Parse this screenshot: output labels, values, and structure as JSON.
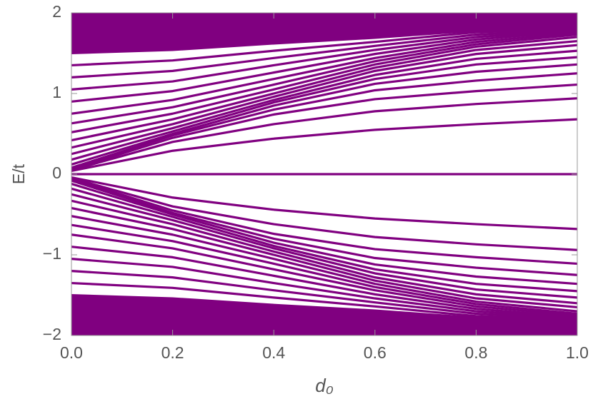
{
  "chart_data": {
    "type": "line",
    "xlabel": "d₀",
    "ylabel": "E/t",
    "xlim": [
      0,
      1
    ],
    "ylim": [
      -2,
      2
    ],
    "xticks": [
      {
        "value": 0,
        "label": "0.0"
      },
      {
        "value": 0.2,
        "label": "0.2"
      },
      {
        "value": 0.4,
        "label": "0.4"
      },
      {
        "value": 0.6,
        "label": "0.6"
      },
      {
        "value": 0.8,
        "label": "0.8"
      },
      {
        "value": 1,
        "label": "1.0"
      }
    ],
    "yticks": [
      {
        "value": -2,
        "label": "−2"
      },
      {
        "value": -1,
        "label": "−1"
      },
      0,
      1,
      2
    ],
    "color": "#800080",
    "x": [
      0,
      0.2,
      0.4,
      0.6,
      0.8,
      1
    ],
    "series": [
      {
        "values": [
          0,
          0,
          0,
          0,
          0,
          0
        ]
      },
      {
        "values": [
          0.04,
          0.29,
          0.44,
          0.55,
          0.62,
          0.68
        ]
      },
      {
        "values": [
          0.05,
          0.4,
          0.62,
          0.78,
          0.87,
          0.94
        ]
      },
      {
        "values": [
          0.06,
          0.45,
          0.74,
          0.93,
          1.03,
          1.11
        ]
      },
      {
        "values": [
          0.08,
          0.48,
          0.8,
          1.04,
          1.16,
          1.25
        ]
      },
      {
        "values": [
          0.12,
          0.5,
          0.85,
          1.12,
          1.27,
          1.36
        ]
      },
      {
        "values": [
          0.18,
          0.53,
          0.89,
          1.18,
          1.36,
          1.45
        ]
      },
      {
        "values": [
          0.25,
          0.57,
          0.92,
          1.23,
          1.43,
          1.53
        ]
      },
      {
        "values": [
          0.33,
          0.62,
          0.96,
          1.28,
          1.49,
          1.6
        ]
      },
      {
        "values": [
          0.42,
          0.68,
          1.0,
          1.32,
          1.54,
          1.65
        ]
      },
      {
        "values": [
          0.52,
          0.75,
          1.05,
          1.36,
          1.58,
          1.7
        ]
      },
      {
        "values": [
          0.63,
          0.83,
          1.11,
          1.4,
          1.61,
          1.73
        ]
      },
      {
        "values": [
          0.75,
          0.92,
          1.18,
          1.44,
          1.64,
          1.75
        ]
      },
      {
        "values": [
          0.9,
          1.03,
          1.26,
          1.49,
          1.67,
          1.77
        ]
      },
      {
        "values": [
          1.05,
          1.15,
          1.35,
          1.54,
          1.7,
          1.78
        ]
      },
      {
        "values": [
          1.2,
          1.28,
          1.44,
          1.59,
          1.73,
          1.79
        ]
      },
      {
        "values": [
          1.35,
          1.41,
          1.53,
          1.64,
          1.76,
          1.8
        ]
      },
      {
        "values": [
          -0.04,
          -0.29,
          -0.44,
          -0.55,
          -0.62,
          -0.68
        ]
      },
      {
        "values": [
          -0.05,
          -0.4,
          -0.62,
          -0.78,
          -0.87,
          -0.94
        ]
      },
      {
        "values": [
          -0.06,
          -0.45,
          -0.74,
          -0.93,
          -1.03,
          -1.11
        ]
      },
      {
        "values": [
          -0.08,
          -0.48,
          -0.8,
          -1.04,
          -1.16,
          -1.25
        ]
      },
      {
        "values": [
          -0.12,
          -0.5,
          -0.85,
          -1.12,
          -1.27,
          -1.36
        ]
      },
      {
        "values": [
          -0.18,
          -0.53,
          -0.89,
          -1.18,
          -1.36,
          -1.45
        ]
      },
      {
        "values": [
          -0.25,
          -0.57,
          -0.92,
          -1.23,
          -1.43,
          -1.53
        ]
      },
      {
        "values": [
          -0.33,
          -0.62,
          -0.96,
          -1.28,
          -1.49,
          -1.6
        ]
      },
      {
        "values": [
          -0.42,
          -0.68,
          -1.0,
          -1.32,
          -1.54,
          -1.65
        ]
      },
      {
        "values": [
          -0.52,
          -0.75,
          -1.05,
          -1.36,
          -1.58,
          -1.7
        ]
      },
      {
        "values": [
          -0.63,
          -0.83,
          -1.11,
          -1.4,
          -1.61,
          -1.73
        ]
      },
      {
        "values": [
          -0.75,
          -0.92,
          -1.18,
          -1.44,
          -1.64,
          -1.75
        ]
      },
      {
        "values": [
          -0.9,
          -1.03,
          -1.26,
          -1.49,
          -1.67,
          -1.77
        ]
      },
      {
        "values": [
          -1.05,
          -1.15,
          -1.35,
          -1.54,
          -1.7,
          -1.78
        ]
      },
      {
        "values": [
          -1.2,
          -1.28,
          -1.44,
          -1.59,
          -1.73,
          -1.79
        ]
      },
      {
        "values": [
          -1.35,
          -1.41,
          -1.53,
          -1.64,
          -1.76,
          -1.8
        ]
      }
    ],
    "areas": [
      {
        "lower": [
          1.5,
          1.54,
          1.62,
          1.69,
          1.78,
          1.81
        ],
        "upper": [
          2,
          2,
          2,
          2,
          2,
          2
        ]
      },
      {
        "lower": [
          -2,
          -2,
          -2,
          -2,
          -2,
          -2
        ],
        "upper": [
          -1.5,
          -1.54,
          -1.62,
          -1.69,
          -1.78,
          -1.81
        ]
      }
    ]
  }
}
